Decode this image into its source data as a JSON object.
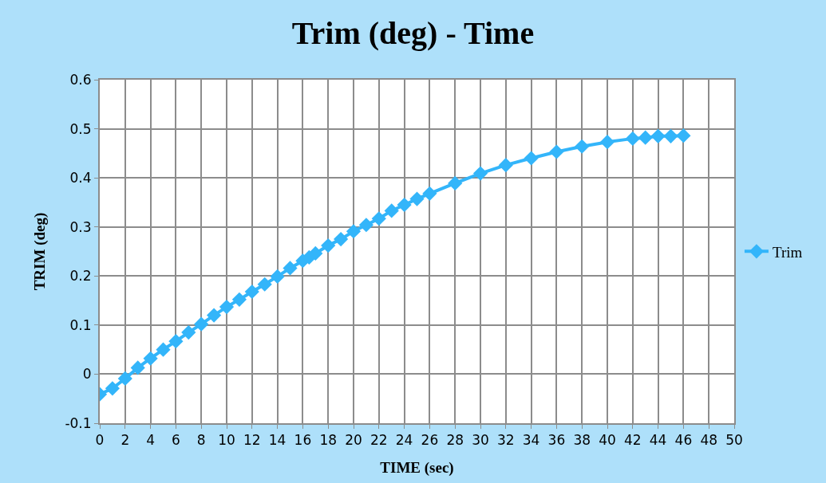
{
  "chart_data": {
    "type": "line",
    "title": "Trim (deg) - Time",
    "xlabel": "TIME (sec)",
    "ylabel": "TRIM (deg)",
    "x": [
      0,
      1,
      2,
      3,
      4,
      5,
      6,
      7,
      8,
      9,
      10,
      11,
      12,
      13,
      14,
      15,
      16,
      16.5,
      17,
      18,
      19,
      20,
      21,
      22,
      23,
      24,
      25,
      26,
      28,
      30,
      32,
      34,
      36,
      38,
      40,
      42,
      43,
      44,
      45,
      46
    ],
    "series": [
      {
        "name": "Trim",
        "color": "#33b5fa",
        "values": [
          -0.041,
          -0.029,
          -0.009,
          0.013,
          0.032,
          0.05,
          0.067,
          0.085,
          0.102,
          0.12,
          0.137,
          0.152,
          0.168,
          0.183,
          0.199,
          0.216,
          0.231,
          0.238,
          0.246,
          0.262,
          0.275,
          0.291,
          0.304,
          0.317,
          0.333,
          0.345,
          0.357,
          0.368,
          0.389,
          0.409,
          0.426,
          0.44,
          0.453,
          0.464,
          0.473,
          0.48,
          0.482,
          0.485,
          0.485,
          0.486
        ]
      }
    ],
    "xlim": [
      0,
      50
    ],
    "xticks": [
      0,
      2,
      4,
      6,
      8,
      10,
      12,
      14,
      16,
      18,
      20,
      22,
      24,
      26,
      28,
      30,
      32,
      34,
      36,
      38,
      40,
      42,
      44,
      46,
      48,
      50
    ],
    "ylim": [
      -0.1,
      0.6
    ],
    "yticks": [
      -0.1,
      0,
      0.1,
      0.2,
      0.3,
      0.4,
      0.5,
      0.6
    ],
    "grid": true,
    "legend": "right",
    "marker": "diamond",
    "line_style": "solid"
  }
}
